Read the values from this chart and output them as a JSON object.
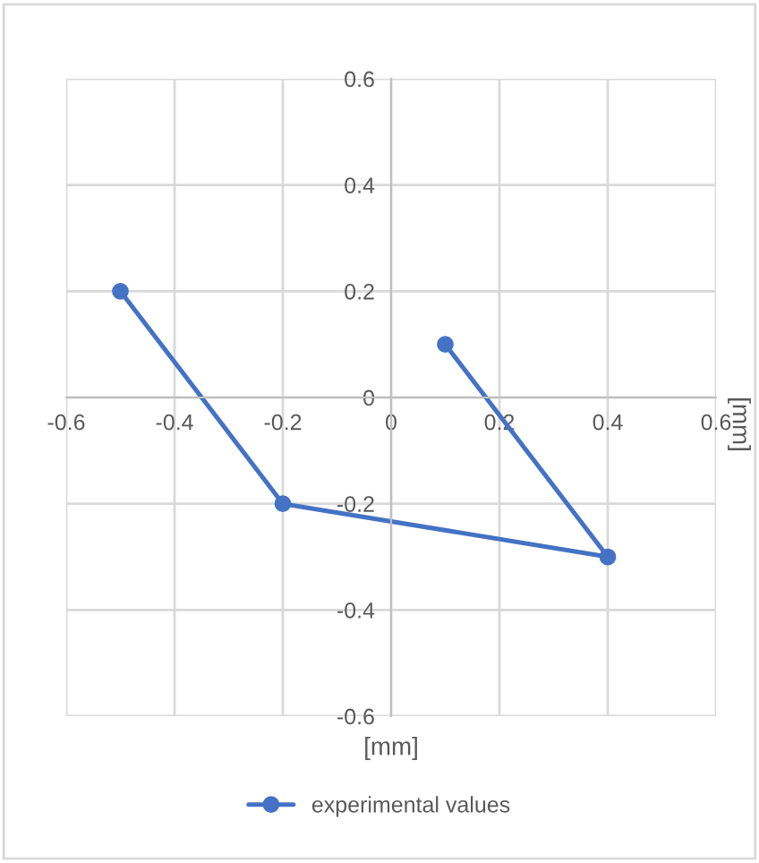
{
  "chart_data": {
    "type": "line",
    "xlabel": "[mm]",
    "ylabel": "[mm]",
    "x": [
      -0.5,
      -0.2,
      0.4,
      0.1
    ],
    "series": [
      {
        "name": "experimental values",
        "color": "#4472c4",
        "values": [
          0.2,
          -0.2,
          -0.3,
          0.1
        ]
      }
    ],
    "xlim": [
      -0.6,
      0.6
    ],
    "ylim": [
      -0.6,
      0.6
    ],
    "xticks": [
      -0.6,
      -0.4,
      -0.2,
      0,
      0.2,
      0.4,
      0.6
    ],
    "yticks": [
      -0.6,
      -0.4,
      -0.2,
      0,
      0.2,
      0.4,
      0.6
    ],
    "grid": true,
    "legend": "bottom",
    "marker": "circle",
    "line_style": "solid"
  }
}
